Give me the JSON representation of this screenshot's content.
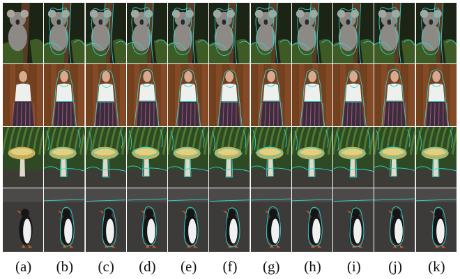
{
  "figure": {
    "columns": [
      "(a)",
      "(b)",
      "(c)",
      "(d)",
      "(e)",
      "(f)",
      "(g)",
      "(h)",
      "(i)",
      "(j)",
      "(k)"
    ],
    "rows": [
      {
        "subject": "koala",
        "palette": {
          "bg": "#1b2415",
          "trunk": "#5a3a22",
          "body": "#8d8a85",
          "leaf": "#3e5a25"
        }
      },
      {
        "subject": "woman",
        "palette": {
          "bg": "#6b3a1f",
          "plank": "#844a26",
          "shirt": "#eef0ee",
          "skirt": "#3b2d3e",
          "hair": "#6a4026",
          "skin": "#d8a98d"
        }
      },
      {
        "subject": "mushroom",
        "palette": {
          "bg": "#2e4a24",
          "fern": "#4f7a2e",
          "cap": "#c8b05a",
          "stem": "#dedbc8",
          "ground": "#3c3b36"
        }
      },
      {
        "subject": "penguin",
        "palette": {
          "bg": "#3d3b39",
          "sky": "#4c4a48",
          "body": "#151515",
          "belly": "#f1f1f1",
          "beak": "#d45a23"
        }
      }
    ],
    "overlay_color": "#2fd6cf"
  }
}
